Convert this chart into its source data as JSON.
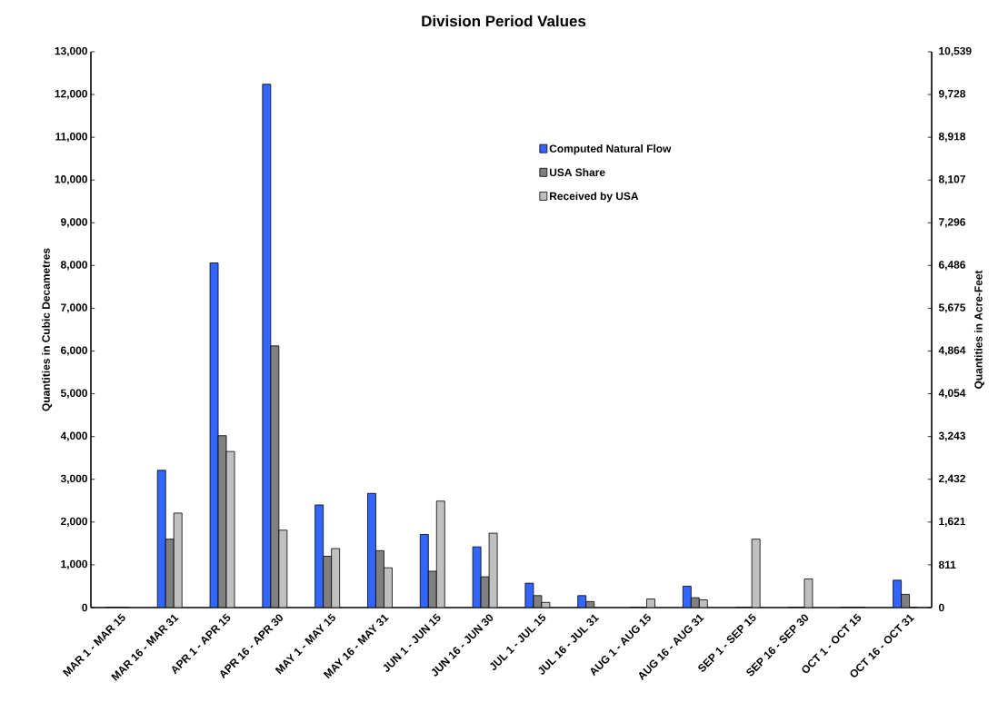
{
  "chart_data": {
    "type": "bar",
    "title": "Division Period Values",
    "ylabel": "Quantities in Cubic Decametres",
    "y2label": "Quantities in Acre-Feet",
    "categories": [
      "MAR 1 - MAR 15",
      "MAR 16 - MAR 31",
      "APR 1 - APR 15",
      "APR 16 - APR 30",
      "MAY 1 - MAY 15",
      "MAY 16 - MAY 31",
      "JUN 1 - JUN 15",
      "JUN 16 - JUN 30",
      "JUL 1 - JUL 15",
      "JUL 16 - JUL 31",
      "AUG 1 - AUG 15",
      "AUG 16 - AUG 31",
      "SEP 1 - SEP 15",
      "SEP 16 - SEP 30",
      "OCT 1 - OCT 15",
      "OCT 16 - OCT 31"
    ],
    "series": [
      {
        "name": "Computed Natural Flow",
        "color": "#3366ff",
        "values": [
          0,
          3210,
          8060,
          12240,
          2400,
          2670,
          1710,
          1420,
          570,
          280,
          0,
          500,
          0,
          0,
          0,
          640
        ]
      },
      {
        "name": "USA Share",
        "color": "#808080",
        "values": [
          0,
          1600,
          4020,
          6120,
          1200,
          1330,
          850,
          720,
          280,
          140,
          0,
          230,
          0,
          0,
          0,
          310
        ]
      },
      {
        "name": "Received by USA",
        "color": "#c0c0c0",
        "values": [
          0,
          2210,
          3650,
          1810,
          1380,
          930,
          2490,
          1740,
          120,
          null,
          200,
          180,
          1600,
          670,
          0,
          0
        ]
      }
    ],
    "ylim": [
      0,
      13000
    ],
    "yticks": [
      0,
      {
        "value": 1000,
        "label": "1,000"
      },
      {
        "value": 2000,
        "label": "2,000"
      },
      {
        "value": 3000,
        "label": "3,000"
      },
      {
        "value": 4000,
        "label": "4,000"
      },
      {
        "value": 5000,
        "label": "5,000"
      },
      {
        "value": 6000,
        "label": "6,000"
      },
      {
        "value": 7000,
        "label": "7,000"
      },
      {
        "value": 8000,
        "label": "8,000"
      },
      {
        "value": 9000,
        "label": "9,000"
      },
      {
        "value": 10000,
        "label": "10,000"
      },
      {
        "value": 11000,
        "label": "11,000"
      },
      {
        "value": 12000,
        "label": "12,000"
      },
      {
        "value": 13000,
        "label": "13,000"
      }
    ],
    "y2lim": [
      0,
      10539
    ],
    "y2ticks": [
      0,
      811,
      {
        "value": 1621,
        "label": "1,621"
      },
      {
        "value": 2432,
        "label": "2,432"
      },
      {
        "value": 3243,
        "label": "3,243"
      },
      {
        "value": 4054,
        "label": "4,054"
      },
      {
        "value": 4864,
        "label": "4,864"
      },
      {
        "value": 5675,
        "label": "5,675"
      },
      {
        "value": 6486,
        "label": "6,486"
      },
      {
        "value": 7296,
        "label": "7,296"
      },
      {
        "value": 8107,
        "label": "8,107"
      },
      {
        "value": 8918,
        "label": "8,918"
      },
      {
        "value": 9728,
        "label": "9,728"
      },
      {
        "value": 10539,
        "label": "10,539"
      }
    ],
    "legend": "top right",
    "grid": false
  }
}
